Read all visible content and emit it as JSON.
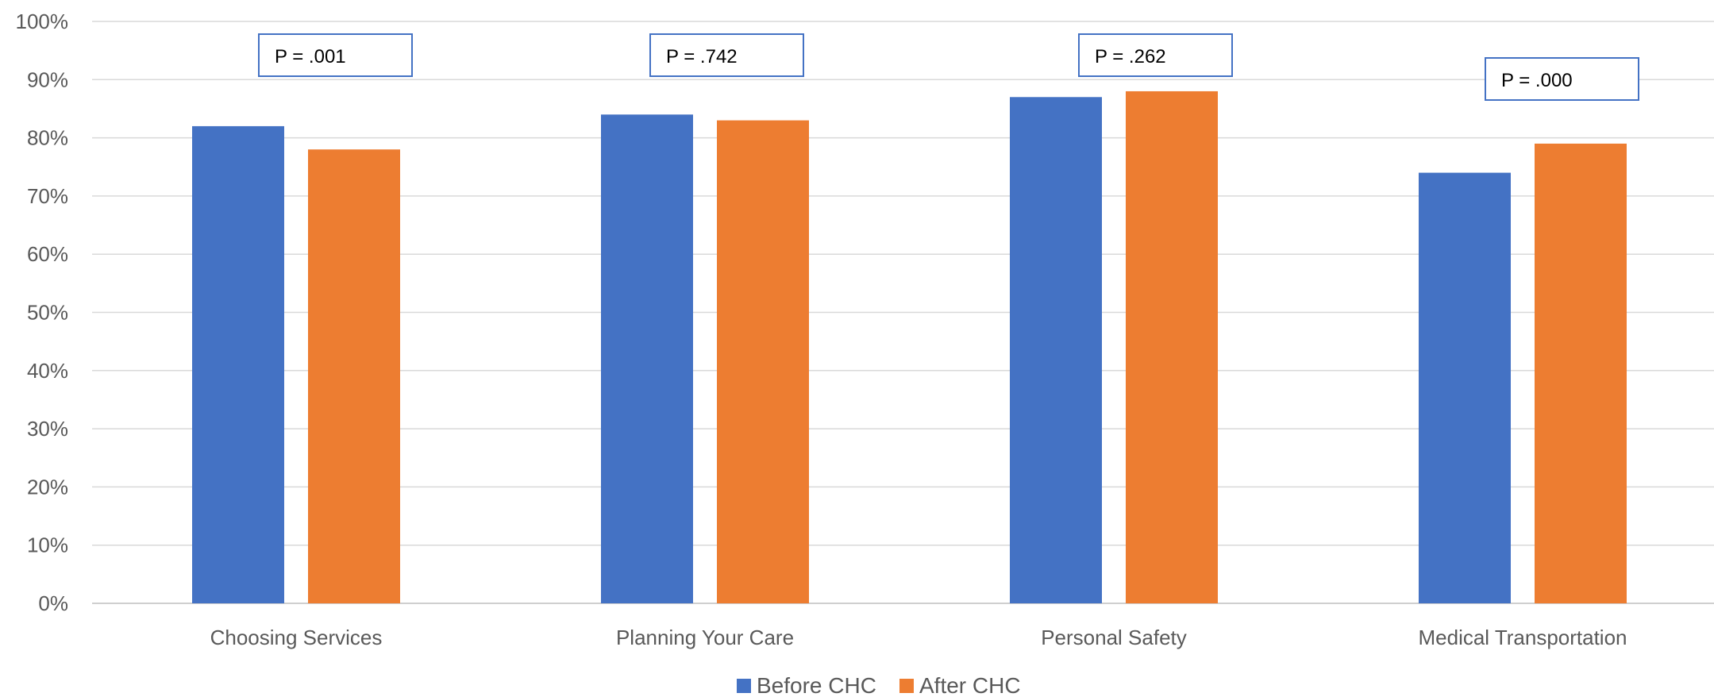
{
  "chart_data": {
    "type": "bar",
    "categories": [
      "Choosing Services",
      "Planning Your Care",
      "Personal Safety",
      "Medical Transportation"
    ],
    "series": [
      {
        "name": "Before CHC",
        "color": "#4472c4",
        "values": [
          82,
          84,
          87,
          74
        ]
      },
      {
        "name": "After CHC",
        "color": "#ed7d31",
        "values": [
          78,
          83,
          88,
          79
        ]
      }
    ],
    "ylim": [
      0,
      100
    ],
    "yticks": [
      0,
      10,
      20,
      30,
      40,
      50,
      60,
      70,
      80,
      90,
      100
    ],
    "ytick_labels": [
      "0%",
      "10%",
      "20%",
      "30%",
      "40%",
      "50%",
      "60%",
      "70%",
      "80%",
      "90%",
      "100%"
    ],
    "annotations": [
      "P = .001",
      "P = .742",
      "P = .262",
      "P = .000"
    ],
    "grid": true,
    "legend_position": "bottom-center"
  }
}
